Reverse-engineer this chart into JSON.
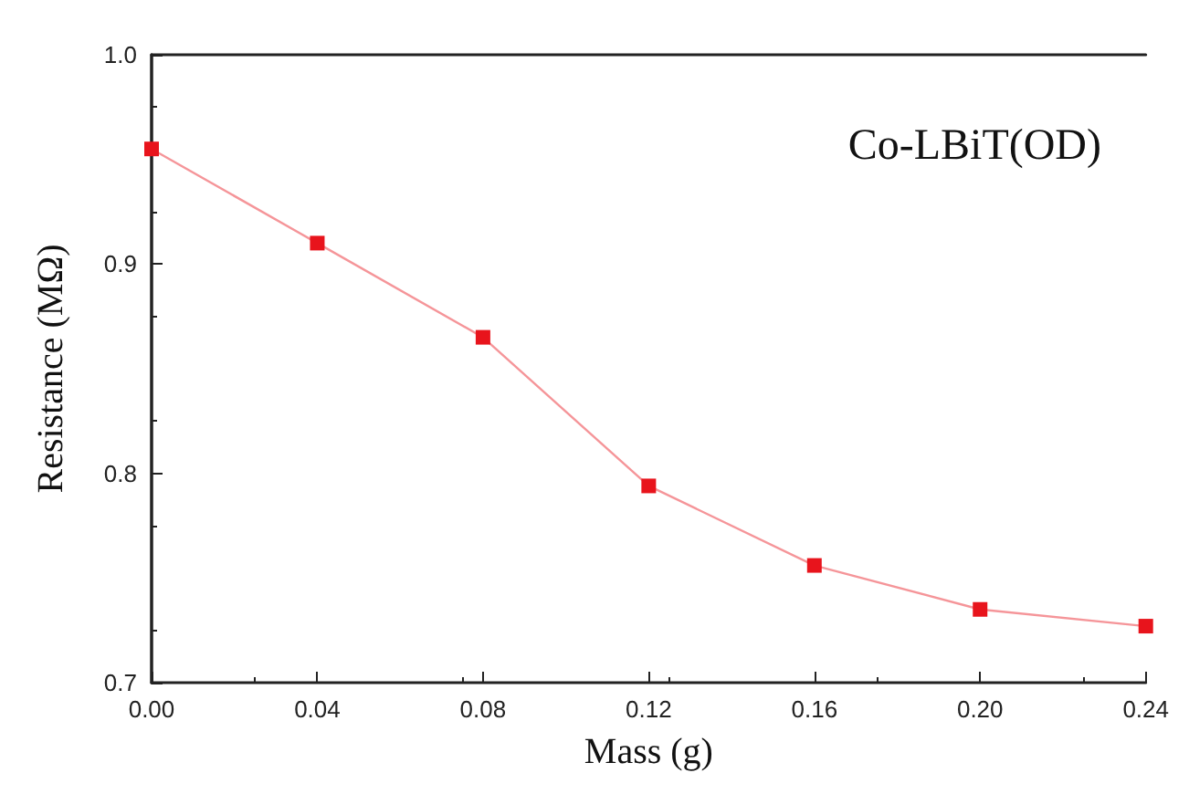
{
  "chart_data": {
    "type": "line",
    "xlabel": "Mass (g)",
    "ylabel": "Resistance (MΩ)",
    "annotations": [
      "Co-LBiT(OD)"
    ],
    "x": [
      0,
      0.04,
      0.08,
      0.12,
      0.16,
      0.2,
      0.24
    ],
    "series": [
      {
        "color": "#e8141c",
        "values": [
          0.955,
          0.91,
          0.865,
          0.794,
          0.756,
          0.735,
          0.727
        ]
      }
    ],
    "xlim": [
      0,
      0.24
    ],
    "xticks": [
      {
        "value": 0,
        "label": "0.00"
      },
      0.04,
      0.08,
      0.12,
      0.16,
      {
        "value": 0.2,
        "label": "0.20"
      },
      0.24
    ],
    "ylim": [
      0.7,
      1.0
    ],
    "yticks": [
      0.7,
      0.8,
      0.9,
      {
        "value": 1.0,
        "label": "1.0"
      }
    ],
    "marker": "square",
    "line_style": "solid"
  }
}
